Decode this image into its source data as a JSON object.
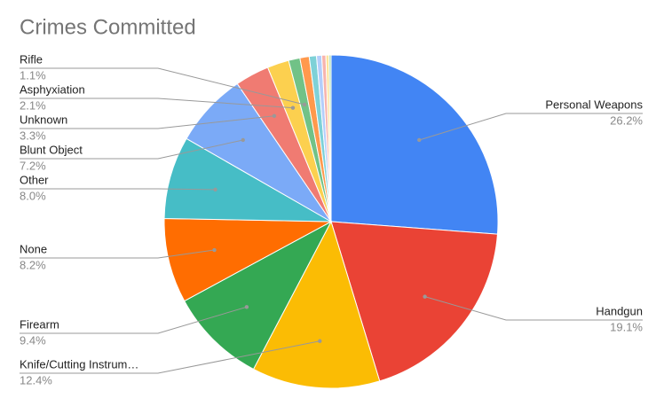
{
  "chart_data": {
    "type": "pie",
    "title": "Crimes Committed",
    "categories": [
      "Personal Weapons",
      "Handgun",
      "Knife/Cutting Instrum…",
      "Firearm",
      "None",
      "Other",
      "Blunt Object",
      "Unknown",
      "Asphyxiation",
      "Rifle",
      null,
      null,
      null,
      null,
      null,
      null
    ],
    "values": [
      26.2,
      19.1,
      12.4,
      9.4,
      8.2,
      8.0,
      7.2,
      3.3,
      2.1,
      1.1,
      0.9,
      0.7,
      0.5,
      0.4,
      0.3,
      0.2
    ],
    "value_labels": [
      "26.2%",
      "19.1%",
      "12.4%",
      "9.4%",
      "8.2%",
      "8.0%",
      "7.2%",
      "3.3%",
      "2.1%",
      "1.1%",
      null,
      null,
      null,
      null,
      null,
      null
    ],
    "colors": [
      "#4285f4",
      "#ea4335",
      "#fbbc04",
      "#34a853",
      "#ff6d01",
      "#46bdc6",
      "#7baaf7",
      "#f07b72",
      "#fcd04f",
      "#71c287",
      "#ff994d",
      "#7ed1d7",
      "#b3cefb",
      "#f7b4ae",
      "#fde49b",
      "#aadcb7"
    ]
  }
}
